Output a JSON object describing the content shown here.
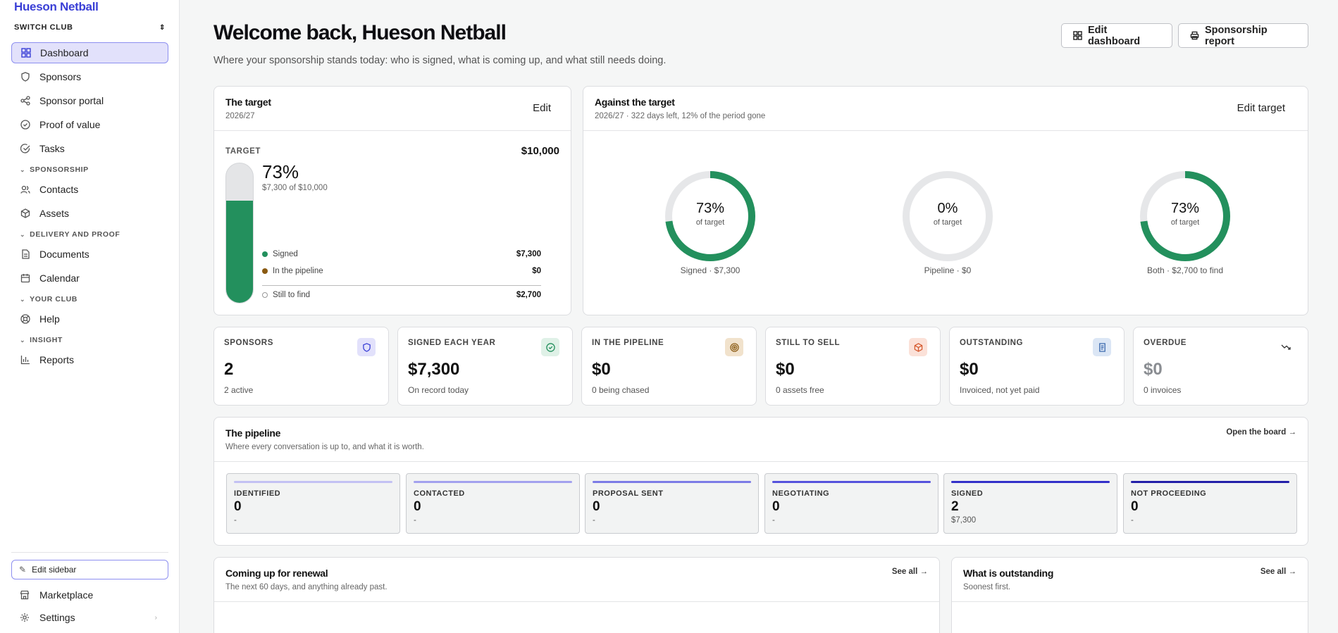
{
  "brand": "Hueson Netball",
  "switch_club": "SWITCH CLUB",
  "nav": {
    "dashboard": "Dashboard",
    "sponsors": "Sponsors",
    "sponsor_portal": "Sponsor portal",
    "proof_of_value": "Proof of value",
    "tasks": "Tasks",
    "section_sponsorship": "SPONSORSHIP",
    "contacts": "Contacts",
    "assets": "Assets",
    "section_delivery": "DELIVERY AND PROOF",
    "documents": "Documents",
    "calendar": "Calendar",
    "section_club": "YOUR CLUB",
    "help": "Help",
    "section_insight": "INSIGHT",
    "reports": "Reports"
  },
  "sidebar_footer": {
    "edit_sidebar": "Edit sidebar",
    "marketplace": "Marketplace",
    "settings": "Settings"
  },
  "header": {
    "title": "Welcome back, Hueson Netball",
    "subtitle": "Where your sponsorship stands today: who is signed, what is coming up, and what still needs doing.",
    "edit_dashboard": "Edit dashboard",
    "sponsorship_report": "Sponsorship report"
  },
  "target_card": {
    "title": "The target",
    "period": "2026/27",
    "edit": "Edit",
    "target_label": "TARGET",
    "target_amount": "$10,000",
    "percent": "73%",
    "progress_fraction": 0.73,
    "progress_text": "$7,300 of $10,000",
    "legend": [
      {
        "label": "Signed",
        "value": "$7,300",
        "color": "#23905d"
      },
      {
        "label": "In the pipeline",
        "value": "$0",
        "color": "#8a5a12"
      }
    ],
    "still_label": "Still to find",
    "still_value": "$2,700"
  },
  "against_card": {
    "title": "Against the target",
    "subtitle": "2026/27 · 322 days left, 12% of the period gone",
    "edit": "Edit target",
    "donuts": [
      {
        "pct": "73%",
        "fraction": 0.73,
        "of": "of target",
        "caption": "Signed · $7,300"
      },
      {
        "pct": "0%",
        "fraction": 0,
        "of": "of target",
        "caption": "Pipeline · $0"
      },
      {
        "pct": "73%",
        "fraction": 0.73,
        "of": "of target",
        "caption": "Both · $2,700 to find"
      }
    ]
  },
  "stats": [
    {
      "label": "SPONSORS",
      "value": "2",
      "sub": "2 active",
      "icon": "shield-icon"
    },
    {
      "label": "SIGNED EACH YEAR",
      "value": "$7,300",
      "sub": "On record today",
      "icon": "check-circle-icon"
    },
    {
      "label": "IN THE PIPELINE",
      "value": "$0",
      "sub": "0 being chased",
      "icon": "target-icon"
    },
    {
      "label": "STILL TO SELL",
      "value": "$0",
      "sub": "0 assets free",
      "icon": "box-icon"
    },
    {
      "label": "OUTSTANDING",
      "value": "$0",
      "sub": "Invoiced, not yet paid",
      "icon": "receipt-icon"
    },
    {
      "label": "OVERDUE",
      "value": "$0",
      "sub": "0 invoices",
      "icon": "trend-down-icon"
    }
  ],
  "pipeline": {
    "title": "The pipeline",
    "subtitle": "Where every conversation is up to, and what it is worth.",
    "action": "Open the board",
    "stages": [
      {
        "label": "IDENTIFIED",
        "count": "0",
        "amount": "-",
        "color": "#c3c1f3"
      },
      {
        "label": "CONTACTED",
        "count": "0",
        "amount": "-",
        "color": "#a3a1ee"
      },
      {
        "label": "PROPOSAL SENT",
        "count": "0",
        "amount": "-",
        "color": "#7c7be6"
      },
      {
        "label": "NEGOTIATING",
        "count": "0",
        "amount": "-",
        "color": "#5552dc"
      },
      {
        "label": "SIGNED",
        "count": "2",
        "amount": "$7,300",
        "color": "#3330c9"
      },
      {
        "label": "NOT PROCEEDING",
        "count": "0",
        "amount": "-",
        "color": "#231fa8"
      }
    ]
  },
  "renewal": {
    "title": "Coming up for renewal",
    "subtitle": "The next 60 days, and anything already past.",
    "action": "See all"
  },
  "outstanding": {
    "title": "What is outstanding",
    "subtitle": "Soonest first.",
    "action": "See all"
  }
}
